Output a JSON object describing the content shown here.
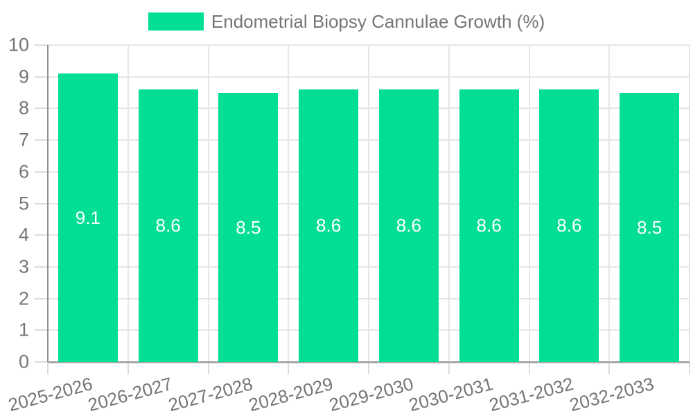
{
  "colors": {
    "bar": "#02de92",
    "grid": "#e6e6e6",
    "tick": "#dcdcdc",
    "y_axis_line": "#8f8f8f",
    "x_axis_line": "#a8a8a8",
    "axis_text": "#757575",
    "value_text": "#ffffff",
    "background": "#ffffff"
  },
  "legend": {
    "label": "Endometrial Biopsy Cannulae Growth (%)"
  },
  "chart_data": {
    "type": "bar",
    "title": "Endometrial Biopsy Cannulae Growth (%)",
    "categories": [
      "2025-2026",
      "2026-2027",
      "2027-2028",
      "2028-2029",
      "2029-2030",
      "2030-2031",
      "2031-2032",
      "2032-2033"
    ],
    "values": [
      9.1,
      8.6,
      8.5,
      8.6,
      8.6,
      8.6,
      8.6,
      8.5
    ],
    "value_labels": [
      "9.1",
      "8.6",
      "8.5",
      "8.6",
      "8.6",
      "8.6",
      "8.6",
      "8.5"
    ],
    "xlabel": "",
    "ylabel": "",
    "ylim": [
      0,
      10
    ],
    "yticks": [
      0,
      1,
      2,
      3,
      4,
      5,
      6,
      7,
      8,
      9,
      10
    ],
    "grid": true,
    "legend_position": "top",
    "value_label_position": "center-of-bar",
    "x_label_rotation_deg": -15
  }
}
